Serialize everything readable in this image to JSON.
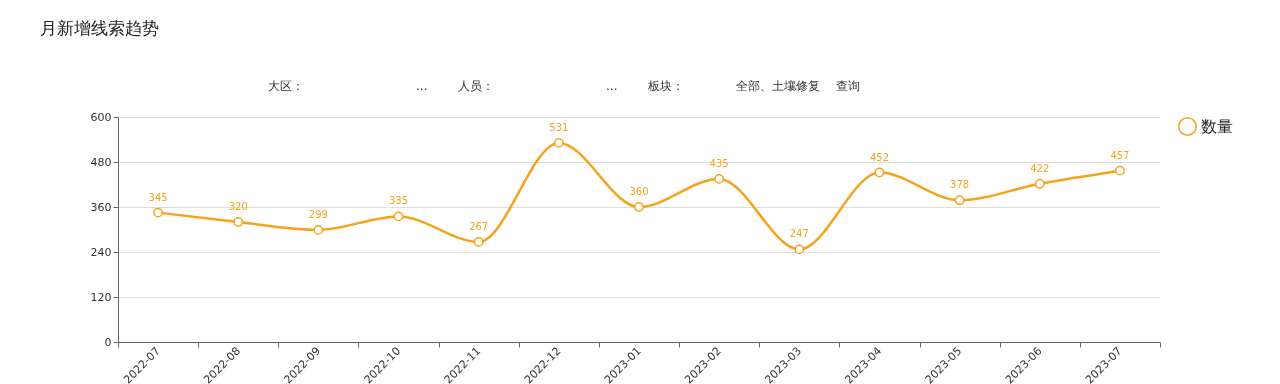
{
  "chart_data": {
    "type": "line",
    "title": "月新增线索趋势",
    "annotations": [
      "大区：",
      "...",
      "人员：",
      "...",
      "板块：",
      "全部、土壤修复",
      "...",
      "查询"
    ],
    "categories": [
      "2022-07",
      "2022-08",
      "2022-09",
      "2022-10",
      "2022-11",
      "2022-12",
      "2023-01",
      "2023-02",
      "2023-03",
      "2023-04",
      "2023-05",
      "2023-06",
      "2023-07"
    ],
    "series": [
      {
        "name": "数量",
        "color": "#f7a21c",
        "values": [
          345,
          320,
          299,
          335,
          267,
          531,
          360,
          435,
          247,
          452,
          378,
          422,
          457
        ]
      }
    ],
    "ylim": [
      0,
      600
    ],
    "yticks": [
      0,
      120,
      240,
      360,
      480,
      600
    ],
    "grid": "y",
    "legend": "top right",
    "marker": "circle",
    "line_style": "solid",
    "data_labels": true
  }
}
